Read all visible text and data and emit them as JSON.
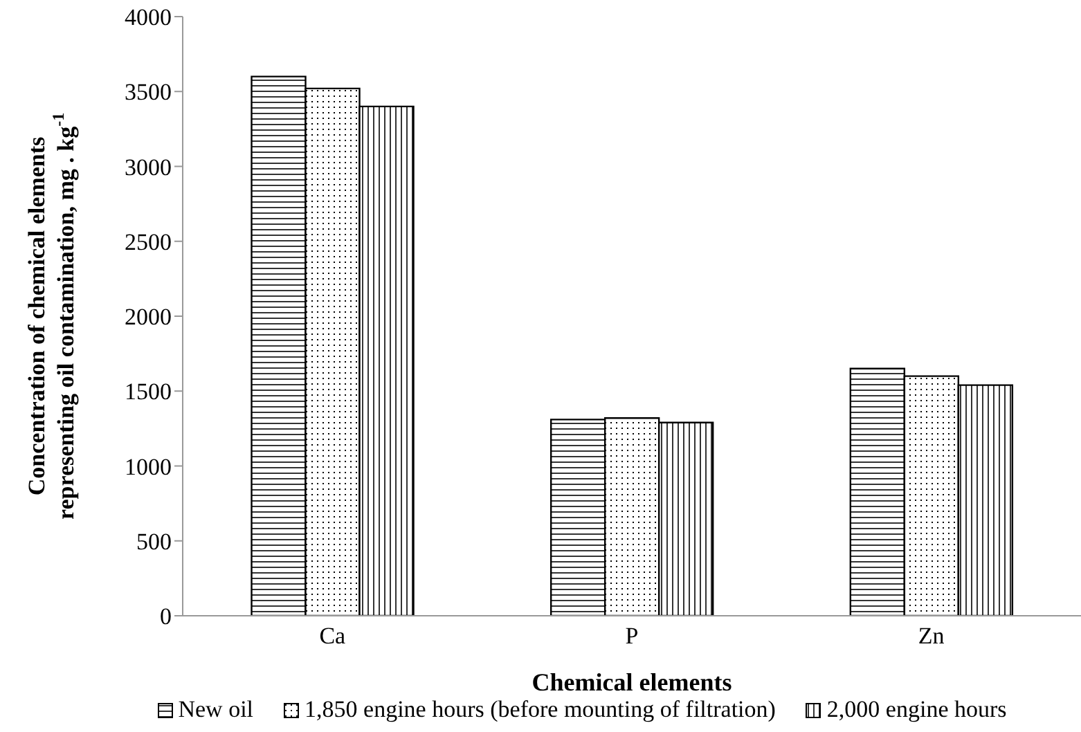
{
  "chart_data": {
    "type": "bar",
    "xlabel": "Chemical elements",
    "ylabel": "Concentration of chemical elements\nrepresenting oil contamination, mg . kg$^{-1}$",
    "categories": [
      "Ca",
      "P",
      "Zn"
    ],
    "series": [
      {
        "name": "New oil",
        "color": "#000000",
        "values": [
          3600,
          1310,
          1650
        ]
      },
      {
        "name": "1,850 engine hours (before mounting of filtration)",
        "color": "#000000",
        "values": [
          3520,
          1320,
          1600
        ]
      },
      {
        "name": "2,000 engine hours",
        "color": "#000000",
        "values": [
          3400,
          1290,
          1540
        ]
      }
    ],
    "ylim": [
      0,
      4000
    ],
    "yticks": [
      0,
      500,
      1000,
      1500,
      2000,
      2500,
      3000,
      3500,
      4000
    ],
    "grid": false,
    "legend": "bottom"
  }
}
